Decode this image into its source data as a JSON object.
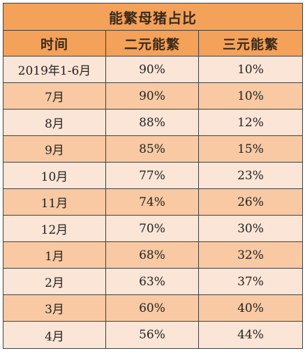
{
  "table": {
    "title": "能繁母猪占比",
    "columns": [
      "时间",
      "二元能繁",
      "三元能繁"
    ],
    "rows": [
      [
        "2019年1-6月",
        "90%",
        "10%"
      ],
      [
        "7月",
        "90%",
        "10%"
      ],
      [
        "8月",
        "88%",
        "12%"
      ],
      [
        "9月",
        "85%",
        "15%"
      ],
      [
        "10月",
        "77%",
        "23%"
      ],
      [
        "11月",
        "74%",
        "26%"
      ],
      [
        "12月",
        "70%",
        "30%"
      ],
      [
        "1月",
        "68%",
        "32%"
      ],
      [
        "2月",
        "63%",
        "37%"
      ],
      [
        "3月",
        "60%",
        "40%"
      ],
      [
        "4月",
        "56%",
        "44%"
      ]
    ]
  },
  "colors": {
    "header_bg": "#f4a15a",
    "row_light": "#fbe5d6",
    "row_dark": "#f8c9a3",
    "border": "#404040"
  }
}
